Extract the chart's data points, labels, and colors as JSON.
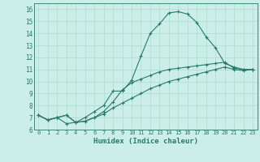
{
  "xlabel": "Humidex (Indice chaleur)",
  "bg_color": "#cceee8",
  "grid_color": "#aaddcc",
  "line_color": "#2a7a6a",
  "xlim": [
    -0.5,
    23.5
  ],
  "ylim": [
    6,
    16.5
  ],
  "xticks": [
    0,
    1,
    2,
    3,
    4,
    5,
    6,
    7,
    8,
    9,
    10,
    11,
    12,
    13,
    14,
    15,
    16,
    17,
    18,
    19,
    20,
    21,
    22,
    23
  ],
  "yticks": [
    6,
    7,
    8,
    9,
    10,
    11,
    12,
    13,
    14,
    15,
    16
  ],
  "line1_x": [
    0,
    1,
    2,
    3,
    4,
    5,
    6,
    7,
    8,
    9,
    10,
    11,
    12,
    13,
    14,
    15,
    16,
    17,
    18,
    19,
    20,
    21,
    22,
    23
  ],
  "line1_y": [
    7.2,
    6.8,
    7.0,
    6.5,
    6.6,
    7.0,
    7.5,
    8.0,
    9.2,
    9.2,
    10.1,
    12.1,
    14.0,
    14.8,
    15.7,
    15.8,
    15.6,
    14.9,
    13.7,
    12.8,
    11.5,
    11.2,
    11.0,
    11.0
  ],
  "line2_x": [
    0,
    1,
    2,
    3,
    4,
    5,
    6,
    7,
    8,
    9,
    10,
    11,
    12,
    13,
    14,
    15,
    16,
    17,
    18,
    19,
    20,
    21,
    22,
    23
  ],
  "line2_y": [
    7.2,
    6.8,
    7.0,
    7.2,
    6.6,
    6.7,
    7.0,
    7.5,
    8.3,
    9.3,
    9.9,
    10.2,
    10.5,
    10.8,
    11.0,
    11.1,
    11.2,
    11.3,
    11.4,
    11.5,
    11.6,
    11.1,
    11.0,
    11.0
  ],
  "line3_x": [
    0,
    1,
    2,
    3,
    4,
    5,
    6,
    7,
    8,
    9,
    10,
    11,
    12,
    13,
    14,
    15,
    16,
    17,
    18,
    19,
    20,
    21,
    22,
    23
  ],
  "line3_y": [
    7.2,
    6.8,
    7.0,
    7.2,
    6.6,
    6.7,
    7.0,
    7.3,
    7.8,
    8.2,
    8.6,
    9.0,
    9.4,
    9.7,
    10.0,
    10.2,
    10.4,
    10.6,
    10.8,
    11.0,
    11.2,
    11.0,
    10.9,
    11.0
  ]
}
